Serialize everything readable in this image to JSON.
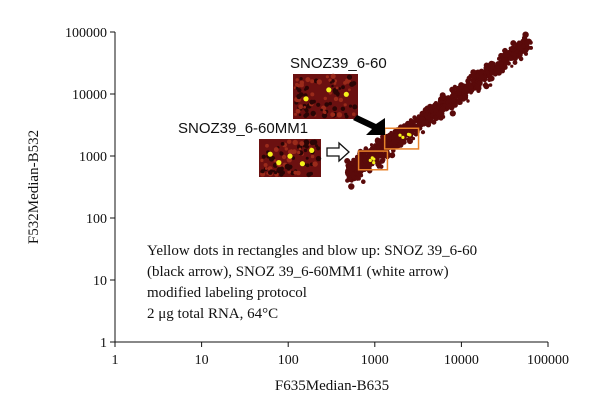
{
  "chart_data": {
    "type": "scatter",
    "title": "",
    "xlabel": "F635Median-B635",
    "ylabel": "F532Median-B532",
    "xscale": "log",
    "yscale": "log",
    "xlim": [
      1,
      100000
    ],
    "ylim": [
      1,
      100000
    ],
    "x_ticks": [
      "1",
      "10",
      "100",
      "1000",
      "10000",
      "100000"
    ],
    "y_ticks": [
      "1",
      "10",
      "100",
      "1000",
      "10000",
      "100000"
    ],
    "grid": false,
    "colors": {
      "points": "#5a0a0a",
      "highlight_dots": "#f5f21a",
      "boxes": "#e8822a",
      "inset_bg": "#6b1010",
      "black_arrow": "#000000"
    },
    "cloud_band": {
      "x_range": [
        500,
        60000
      ],
      "diagonal_offset_log": 0.03,
      "spread_log": 0.14
    },
    "highlight_boxes": [
      {
        "name": "SNOZ39_6-60",
        "x_range": [
          1300,
          3200
        ],
        "y_range": [
          1300,
          2800
        ]
      },
      {
        "name": "SNOZ39_6-60MM1",
        "x_range": [
          650,
          1400
        ],
        "y_range": [
          600,
          1200
        ]
      }
    ],
    "annotations": [
      {
        "label": "SNOZ39_6-60",
        "arrow": "black"
      },
      {
        "label": "SNOZ39_6-60MM1",
        "arrow": "white"
      }
    ],
    "note_lines": [
      "Yellow dots in rectangles and blow up: SNOZ 39_6-60",
      "(black arrow), SNOZ 39_6-60MM1 (white arrow)",
      "modified labeling protocol",
      "2 μg total RNA, 64°C"
    ]
  }
}
